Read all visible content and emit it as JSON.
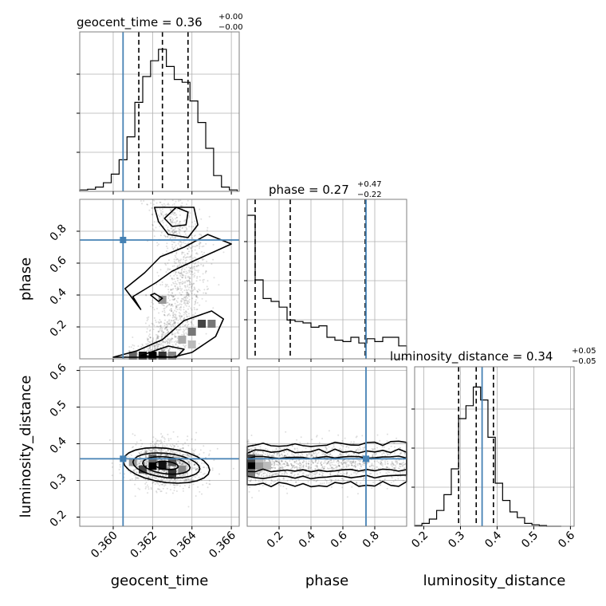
{
  "chart_data": {
    "type": "corner",
    "titles": {
      "geocent_time": {
        "label": "geocent_time = 0.36",
        "sup": "+0.00",
        "sub": "−0.00"
      },
      "phase": {
        "label": "phase = 0.27",
        "sup": "+0.47",
        "sub": "−0.22"
      },
      "luminosity_distance": {
        "label": "luminosity_distance = 0.34",
        "sup": "+0.05",
        "sub": "−0.05"
      }
    },
    "axis_labels": {
      "geocent_time": "geocent_time",
      "phase": "phase",
      "luminosity_distance": "luminosity_distance"
    },
    "truths": {
      "geocent_time": 0.3605,
      "phase": 0.745,
      "luminosity_distance": 0.359
    },
    "truth_color": "#4682b4",
    "ranges": {
      "geocent_time": [
        0.3583,
        0.3664
      ],
      "phase": [
        0.0,
        1.0
      ],
      "luminosity_distance": [
        0.175,
        0.61
      ]
    },
    "ticks": {
      "geocent_time": [
        {
          "v": 0.36,
          "label": "0.360"
        },
        {
          "v": 0.362,
          "label": "0.362"
        },
        {
          "v": 0.364,
          "label": "0.364"
        },
        {
          "v": 0.366,
          "label": "0.366"
        }
      ],
      "phase": [
        {
          "v": 0.2,
          "label": "0.2"
        },
        {
          "v": 0.4,
          "label": "0.4"
        },
        {
          "v": 0.6,
          "label": "0.6"
        },
        {
          "v": 0.8,
          "label": "0.8"
        }
      ],
      "luminosity_distance": [
        {
          "v": 0.2,
          "label": "0.2"
        },
        {
          "v": 0.3,
          "label": "0.3"
        },
        {
          "v": 0.4,
          "label": "0.4"
        },
        {
          "v": 0.5,
          "label": "0.5"
        },
        {
          "v": 0.6,
          "label": "0.6"
        }
      ]
    },
    "quantiles": {
      "geocent_time": [
        0.3613,
        0.3625,
        0.3638
      ],
      "phase": [
        0.05,
        0.27,
        0.74
      ],
      "luminosity_distance": [
        0.295,
        0.343,
        0.39
      ]
    },
    "histograms": {
      "geocent_time": {
        "edges": [
          0.3583,
          0.3587,
          0.3591,
          0.3595,
          0.3599,
          0.3603,
          0.3607,
          0.3611,
          0.3615,
          0.3619,
          0.3623,
          0.3627,
          0.3631,
          0.3635,
          0.3639,
          0.3643,
          0.3647,
          0.3651,
          0.3655,
          0.3659,
          0.3663
        ],
        "counts": [
          0.01,
          0.015,
          0.03,
          0.06,
          0.12,
          0.22,
          0.38,
          0.62,
          0.8,
          0.91,
          0.99,
          0.87,
          0.78,
          0.76,
          0.63,
          0.48,
          0.3,
          0.11,
          0.03,
          0.01
        ]
      },
      "phase": {
        "edges": [
          0.0,
          0.05,
          0.1,
          0.15,
          0.2,
          0.25,
          0.3,
          0.35,
          0.4,
          0.45,
          0.5,
          0.55,
          0.6,
          0.65,
          0.7,
          0.75,
          0.8,
          0.85,
          0.9,
          0.95,
          1.0
        ],
        "counts": [
          1.0,
          0.55,
          0.42,
          0.4,
          0.36,
          0.27,
          0.26,
          0.25,
          0.22,
          0.23,
          0.15,
          0.13,
          0.12,
          0.15,
          0.11,
          0.14,
          0.12,
          0.15,
          0.15,
          0.09
        ]
      },
      "luminosity_distance": {
        "edges": [
          0.175,
          0.195,
          0.215,
          0.235,
          0.255,
          0.275,
          0.295,
          0.315,
          0.335,
          0.355,
          0.375,
          0.395,
          0.415,
          0.435,
          0.455,
          0.475,
          0.495,
          0.515,
          0.535,
          0.555,
          0.575
        ],
        "counts": [
          0.005,
          0.02,
          0.05,
          0.11,
          0.22,
          0.4,
          0.75,
          0.84,
          0.97,
          0.88,
          0.62,
          0.3,
          0.18,
          0.1,
          0.06,
          0.02,
          0.01,
          0.005,
          0.0,
          0.0
        ]
      }
    }
  }
}
